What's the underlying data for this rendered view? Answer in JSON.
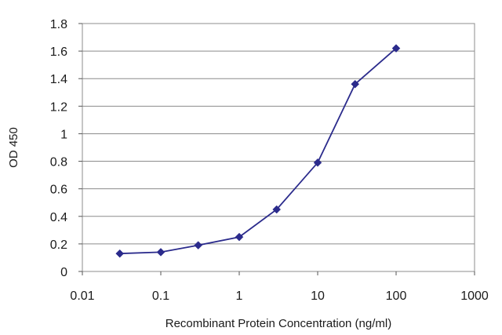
{
  "chart_data": {
    "type": "line",
    "title": "",
    "xlabel": "Recombinant Protein Concentration (ng/ml)",
    "ylabel": "OD 450",
    "x_scale": "log",
    "xlim": [
      0.01,
      1000
    ],
    "ylim": [
      0,
      1.8
    ],
    "x_ticks": [
      "0.01",
      "0.1",
      "1",
      "10",
      "100",
      "1000"
    ],
    "y_ticks": [
      "0",
      "0.2",
      "0.4",
      "0.6",
      "0.8",
      "1",
      "1.2",
      "1.4",
      "1.6",
      "1.8"
    ],
    "grid": "horizontal",
    "legend": "none",
    "series": [
      {
        "color": "#2b2b8c",
        "marker": "diamond",
        "x": [
          0.03,
          0.1,
          0.3,
          1,
          3,
          10,
          30,
          100
        ],
        "y": [
          0.13,
          0.14,
          0.19,
          0.25,
          0.45,
          0.79,
          1.36,
          1.62
        ]
      }
    ]
  }
}
